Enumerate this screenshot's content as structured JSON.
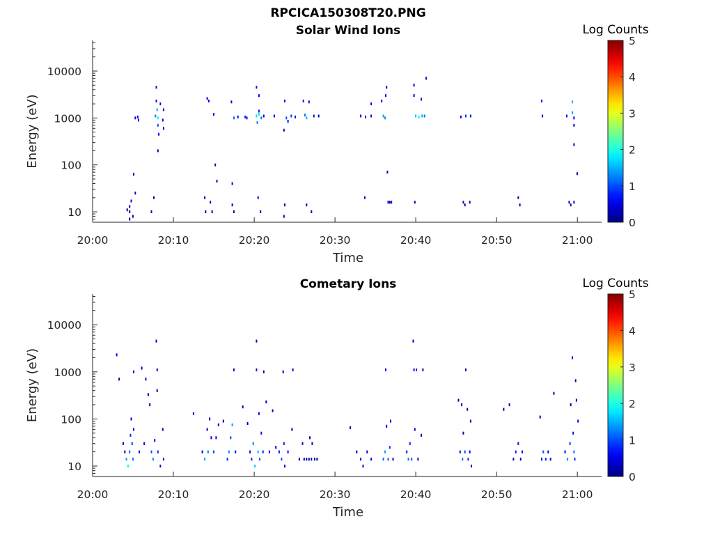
{
  "figure_title": "RPCICA150308T20.PNG",
  "chart_data": [
    {
      "type": "heatmap",
      "title": "Solar Wind Ions",
      "xlabel": "Time",
      "ylabel": "Energy (eV)",
      "x_ticks": [
        "20:00",
        "20:10",
        "20:20",
        "20:30",
        "20:40",
        "20:50",
        "21:00"
      ],
      "x_tick_minutes": [
        0,
        10,
        20,
        30,
        40,
        50,
        60
      ],
      "xlim_minutes": [
        0,
        63
      ],
      "y_scale": "log",
      "ylim": [
        6,
        45000
      ],
      "y_ticks": [
        10,
        100,
        1000,
        10000
      ],
      "y_tick_labels": [
        "10",
        "100",
        "1000",
        "10000"
      ],
      "colorbar": {
        "label": "Log Counts",
        "min": 0,
        "max": 5,
        "ticks": [
          "0",
          "1",
          "2",
          "3",
          "4",
          "5"
        ],
        "colormap": "jet"
      },
      "cells": [
        [
          4.2,
          11,
          0.2
        ],
        [
          4.5,
          13,
          0.3
        ],
        [
          4.5,
          10,
          0.2
        ],
        [
          4.5,
          7,
          0.1
        ],
        [
          4.7,
          17,
          0.3
        ],
        [
          4.9,
          8,
          0.2
        ],
        [
          5.0,
          63,
          0.2
        ],
        [
          5.2,
          25,
          0.3
        ],
        [
          5.2,
          1000,
          0.5
        ],
        [
          5.5,
          1050,
          0.6
        ],
        [
          5.6,
          900,
          0.4
        ],
        [
          7.2,
          10,
          0.2
        ],
        [
          7.5,
          20,
          0.3
        ],
        [
          7.7,
          1100,
          1.2
        ],
        [
          7.8,
          4500,
          0.5
        ],
        [
          7.8,
          2300,
          0.6
        ],
        [
          7.9,
          1500,
          1.5
        ],
        [
          8.0,
          1000,
          1.8
        ],
        [
          8.0,
          700,
          1.0
        ],
        [
          8.1,
          450,
          0.6
        ],
        [
          8.0,
          200,
          0.3
        ],
        [
          8.3,
          2000,
          0.7
        ],
        [
          8.6,
          900,
          0.5
        ],
        [
          8.7,
          600,
          0.4
        ],
        [
          8.7,
          1500,
          0.4
        ],
        [
          13.8,
          20,
          0.3
        ],
        [
          13.9,
          10,
          0.2
        ],
        [
          14.1,
          2600,
          0.6
        ],
        [
          14.3,
          2300,
          0.6
        ],
        [
          14.5,
          16,
          0.3
        ],
        [
          14.7,
          10,
          0.2
        ],
        [
          14.9,
          1200,
          0.5
        ],
        [
          15.1,
          100,
          0.2
        ],
        [
          15.3,
          45,
          0.3
        ],
        [
          17.1,
          2200,
          0.5
        ],
        [
          17.2,
          40,
          0.3
        ],
        [
          17.2,
          14,
          0.2
        ],
        [
          17.4,
          1000,
          1.1
        ],
        [
          17.4,
          10,
          0.2
        ],
        [
          17.9,
          1050,
          0.6
        ],
        [
          18.8,
          1050,
          0.8
        ],
        [
          19.0,
          1000,
          0.5
        ],
        [
          20.2,
          4500,
          0.6
        ],
        [
          20.2,
          1100,
          1.7
        ],
        [
          20.3,
          800,
          1.3
        ],
        [
          20.4,
          20,
          0.3
        ],
        [
          20.5,
          3000,
          0.5
        ],
        [
          20.5,
          1400,
          0.7
        ],
        [
          20.5,
          1200,
          1.8
        ],
        [
          20.7,
          10,
          0.2
        ],
        [
          20.8,
          1000,
          1.2
        ],
        [
          21.1,
          1100,
          0.6
        ],
        [
          22.4,
          1100,
          0.5
        ],
        [
          23.7,
          2300,
          0.6
        ],
        [
          23.6,
          550,
          0.4
        ],
        [
          23.7,
          14,
          0.2
        ],
        [
          23.6,
          8,
          0.3
        ],
        [
          23.9,
          1000,
          1.0
        ],
        [
          24.1,
          850,
          0.6
        ],
        [
          24.5,
          1100,
          0.9
        ],
        [
          25.0,
          1050,
          0.6
        ],
        [
          26.0,
          2300,
          0.7
        ],
        [
          26.2,
          1150,
          1.2
        ],
        [
          26.4,
          1000,
          1.5
        ],
        [
          26.4,
          14,
          0.2
        ],
        [
          26.7,
          2200,
          0.5
        ],
        [
          27.0,
          10,
          0.2
        ],
        [
          27.3,
          1100,
          0.7
        ],
        [
          27.9,
          1100,
          0.5
        ],
        [
          33.1,
          1100,
          0.6
        ],
        [
          33.6,
          20,
          0.3
        ],
        [
          33.7,
          1050,
          0.5
        ],
        [
          34.4,
          1100,
          0.6
        ],
        [
          34.4,
          2000,
          0.5
        ],
        [
          35.7,
          2300,
          0.6
        ],
        [
          35.9,
          1100,
          1.4
        ],
        [
          36.1,
          1000,
          1.3
        ],
        [
          36.2,
          3000,
          0.5
        ],
        [
          36.3,
          4500,
          0.4
        ],
        [
          36.4,
          70,
          0.2
        ],
        [
          36.5,
          16,
          0.3
        ],
        [
          36.7,
          16,
          0.4
        ],
        [
          36.9,
          16,
          0.4
        ],
        [
          39.7,
          5000,
          0.5
        ],
        [
          39.7,
          3000,
          0.5
        ],
        [
          39.8,
          16,
          0.3
        ],
        [
          39.9,
          1100,
          1.6
        ],
        [
          40.3,
          1050,
          1.8
        ],
        [
          40.6,
          2500,
          0.5
        ],
        [
          40.7,
          1100,
          1.5
        ],
        [
          41.0,
          1100,
          1.2
        ],
        [
          41.2,
          7000,
          0.4
        ],
        [
          45.5,
          1050,
          0.6
        ],
        [
          45.8,
          16,
          0.3
        ],
        [
          46.0,
          14,
          0.2
        ],
        [
          46.1,
          1100,
          0.8
        ],
        [
          46.6,
          16,
          0.3
        ],
        [
          46.7,
          1100,
          0.5
        ],
        [
          52.6,
          20,
          0.3
        ],
        [
          52.8,
          14,
          0.2
        ],
        [
          55.5,
          2300,
          0.6
        ],
        [
          55.6,
          1100,
          0.5
        ],
        [
          58.6,
          1100,
          0.6
        ],
        [
          58.9,
          16,
          0.3
        ],
        [
          59.1,
          14,
          0.3
        ],
        [
          59.3,
          2200,
          1.5
        ],
        [
          59.3,
          1300,
          1.4
        ],
        [
          59.5,
          1000,
          0.6
        ],
        [
          59.5,
          700,
          0.4
        ],
        [
          59.5,
          270,
          0.3
        ],
        [
          59.5,
          16,
          0.3
        ],
        [
          59.9,
          65,
          0.2
        ]
      ]
    },
    {
      "type": "heatmap",
      "title": "Cometary Ions",
      "xlabel": "Time",
      "ylabel": "Energy (eV)",
      "x_ticks": [
        "20:00",
        "20:10",
        "20:20",
        "20:30",
        "20:40",
        "20:50",
        "21:00"
      ],
      "x_tick_minutes": [
        0,
        10,
        20,
        30,
        40,
        50,
        60
      ],
      "xlim_minutes": [
        0,
        63
      ],
      "y_scale": "log",
      "ylim": [
        6,
        45000
      ],
      "y_ticks": [
        10,
        100,
        1000,
        10000
      ],
      "y_tick_labels": [
        "10",
        "100",
        "1000",
        "10000"
      ],
      "colorbar": {
        "label": "Log Counts",
        "min": 0,
        "max": 5,
        "ticks": [
          "0",
          "1",
          "2",
          "3",
          "4",
          "5"
        ],
        "colormap": "jet"
      },
      "cells": [
        [
          2.9,
          2300,
          0.5
        ],
        [
          3.2,
          700,
          0.3
        ],
        [
          3.7,
          30,
          0.3
        ],
        [
          3.9,
          20,
          0.5
        ],
        [
          4.1,
          14,
          1.4
        ],
        [
          4.3,
          10,
          1.8
        ],
        [
          4.5,
          20,
          1.1
        ],
        [
          4.6,
          45,
          0.8
        ],
        [
          4.7,
          100,
          0.4
        ],
        [
          4.8,
          30,
          0.9
        ],
        [
          4.9,
          14,
          1.2
        ],
        [
          5.0,
          60,
          0.5
        ],
        [
          5.0,
          1000,
          0.3
        ],
        [
          5.7,
          20,
          0.6
        ],
        [
          6.0,
          1200,
          0.3
        ],
        [
          6.3,
          30,
          0.5
        ],
        [
          6.5,
          700,
          0.3
        ],
        [
          6.8,
          330,
          0.3
        ],
        [
          7.0,
          200,
          0.3
        ],
        [
          7.2,
          20,
          1.0
        ],
        [
          7.4,
          14,
          1.3
        ],
        [
          7.6,
          35,
          0.6
        ],
        [
          7.8,
          4500,
          0.4
        ],
        [
          7.9,
          1100,
          0.4
        ],
        [
          7.9,
          400,
          0.3
        ],
        [
          8.0,
          20,
          0.8
        ],
        [
          8.3,
          10,
          0.6
        ],
        [
          8.6,
          60,
          0.4
        ],
        [
          8.7,
          14,
          0.7
        ],
        [
          12.4,
          130,
          0.3
        ],
        [
          13.5,
          20,
          0.6
        ],
        [
          13.8,
          14,
          1.4
        ],
        [
          14.1,
          60,
          0.5
        ],
        [
          14.2,
          20,
          1.2
        ],
        [
          14.4,
          100,
          0.3
        ],
        [
          14.6,
          40,
          0.6
        ],
        [
          14.9,
          20,
          0.9
        ],
        [
          15.2,
          40,
          0.5
        ],
        [
          15.5,
          75,
          0.3
        ],
        [
          16.1,
          90,
          0.3
        ],
        [
          16.6,
          14,
          0.8
        ],
        [
          16.8,
          20,
          1.3
        ],
        [
          17.0,
          40,
          1.0
        ],
        [
          17.2,
          75,
          1.4
        ],
        [
          17.4,
          1100,
          0.4
        ],
        [
          17.6,
          20,
          0.6
        ],
        [
          18.5,
          180,
          0.3
        ],
        [
          19.1,
          80,
          0.3
        ],
        [
          19.4,
          20,
          0.5
        ],
        [
          19.6,
          14,
          0.8
        ],
        [
          19.8,
          30,
          1.2
        ],
        [
          20.0,
          10,
          1.6
        ],
        [
          20.2,
          4500,
          0.4
        ],
        [
          20.2,
          1100,
          0.6
        ],
        [
          20.4,
          20,
          1.5
        ],
        [
          20.5,
          130,
          0.4
        ],
        [
          20.6,
          14,
          1.1
        ],
        [
          20.8,
          50,
          0.7
        ],
        [
          21.0,
          20,
          0.8
        ],
        [
          21.1,
          1000,
          0.3
        ],
        [
          21.4,
          230,
          0.3
        ],
        [
          21.8,
          20,
          0.6
        ],
        [
          22.2,
          150,
          0.3
        ],
        [
          22.6,
          25,
          0.5
        ],
        [
          23.0,
          20,
          0.7
        ],
        [
          23.3,
          14,
          1.0
        ],
        [
          23.5,
          1000,
          0.4
        ],
        [
          23.6,
          30,
          0.7
        ],
        [
          23.7,
          10,
          0.5
        ],
        [
          24.1,
          20,
          0.6
        ],
        [
          24.6,
          60,
          0.3
        ],
        [
          24.7,
          1100,
          0.3
        ],
        [
          25.5,
          14,
          0.3
        ],
        [
          25.9,
          30,
          0.4
        ],
        [
          26.1,
          14,
          0.3
        ],
        [
          26.4,
          14,
          0.3
        ],
        [
          26.7,
          14,
          0.3
        ],
        [
          27.0,
          14,
          0.2
        ],
        [
          26.8,
          40,
          0.4
        ],
        [
          27.1,
          30,
          0.3
        ],
        [
          27.4,
          14,
          0.3
        ],
        [
          27.7,
          14,
          0.2
        ],
        [
          31.8,
          65,
          0.3
        ],
        [
          32.6,
          20,
          0.5
        ],
        [
          33.1,
          14,
          0.7
        ],
        [
          33.4,
          10,
          0.4
        ],
        [
          33.9,
          20,
          0.5
        ],
        [
          34.4,
          14,
          0.6
        ],
        [
          35.9,
          14,
          1.1
        ],
        [
          36.1,
          20,
          1.4
        ],
        [
          36.2,
          1100,
          0.6
        ],
        [
          36.3,
          70,
          0.5
        ],
        [
          36.5,
          14,
          1.1
        ],
        [
          36.7,
          25,
          0.9
        ],
        [
          36.8,
          90,
          0.3
        ],
        [
          37.1,
          14,
          0.5
        ],
        [
          38.8,
          20,
          0.7
        ],
        [
          39.0,
          14,
          1.2
        ],
        [
          39.2,
          30,
          0.8
        ],
        [
          39.4,
          14,
          1.0
        ],
        [
          39.6,
          4500,
          0.4
        ],
        [
          39.7,
          1100,
          0.7
        ],
        [
          39.8,
          60,
          0.4
        ],
        [
          40.0,
          1100,
          0.8
        ],
        [
          40.2,
          14,
          0.5
        ],
        [
          40.6,
          45,
          0.3
        ],
        [
          40.8,
          1100,
          0.3
        ],
        [
          45.2,
          250,
          0.3
        ],
        [
          45.4,
          20,
          0.6
        ],
        [
          45.6,
          200,
          0.3
        ],
        [
          45.7,
          14,
          1.2
        ],
        [
          45.8,
          50,
          0.4
        ],
        [
          46.0,
          20,
          1.0
        ],
        [
          46.1,
          1100,
          0.3
        ],
        [
          46.3,
          160,
          0.4
        ],
        [
          46.4,
          14,
          0.8
        ],
        [
          46.6,
          20,
          0.6
        ],
        [
          46.8,
          10,
          0.4
        ],
        [
          46.7,
          90,
          0.3
        ],
        [
          50.8,
          160,
          0.3
        ],
        [
          51.5,
          200,
          0.3
        ],
        [
          52.0,
          14,
          0.4
        ],
        [
          52.3,
          20,
          0.8
        ],
        [
          52.6,
          30,
          0.5
        ],
        [
          52.9,
          14,
          0.4
        ],
        [
          53.1,
          20,
          0.4
        ],
        [
          55.3,
          110,
          0.3
        ],
        [
          55.5,
          14,
          0.6
        ],
        [
          55.7,
          20,
          1.0
        ],
        [
          56.0,
          14,
          0.8
        ],
        [
          56.3,
          20,
          0.6
        ],
        [
          56.6,
          14,
          0.4
        ],
        [
          57.0,
          350,
          0.3
        ],
        [
          58.4,
          20,
          0.6
        ],
        [
          58.7,
          14,
          1.3
        ],
        [
          59.0,
          30,
          0.9
        ],
        [
          59.1,
          200,
          0.3
        ],
        [
          59.3,
          2000,
          0.3
        ],
        [
          59.4,
          50,
          0.7
        ],
        [
          59.5,
          20,
          1.2
        ],
        [
          59.6,
          14,
          0.8
        ],
        [
          59.7,
          650,
          0.3
        ],
        [
          59.8,
          250,
          0.3
        ],
        [
          60.0,
          90,
          0.4
        ]
      ]
    }
  ]
}
